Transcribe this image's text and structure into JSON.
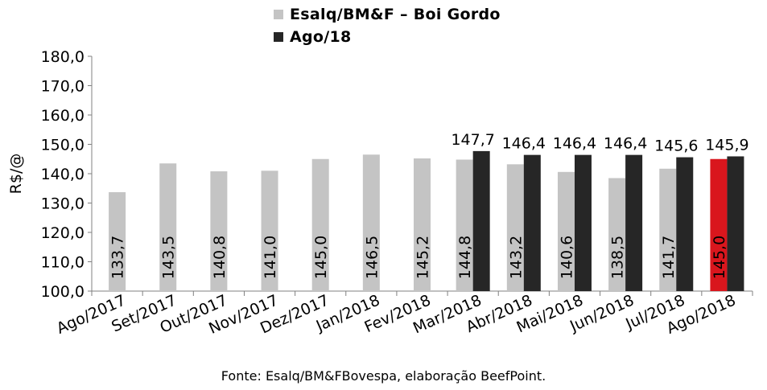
{
  "chart_data": {
    "type": "bar",
    "ylabel": "R$/@",
    "ylim": [
      100,
      180
    ],
    "yticks": [
      "100,0",
      "110,0",
      "120,0",
      "130,0",
      "140,0",
      "150,0",
      "160,0",
      "170,0",
      "180,0"
    ],
    "categories": [
      "Ago/2017",
      "Set/2017",
      "Out/2017",
      "Nov/2017",
      "Dez/2017",
      "Jan/2018",
      "Fev/2018",
      "Mar/2018",
      "Abr/2018",
      "Mai/2018",
      "Jun/2018",
      "Jul/2018",
      "Ago/2018"
    ],
    "series": [
      {
        "name": "Esalq/BM&F – Boi Gordo",
        "color": "#c4c4c4",
        "values": [
          133.7,
          143.5,
          140.8,
          141.0,
          145.0,
          146.5,
          145.2,
          144.8,
          143.2,
          140.6,
          138.5,
          141.7,
          145.0
        ],
        "labels": [
          "133,7",
          "143,5",
          "140,8",
          "141,0",
          "145,0",
          "146,5",
          "145,2",
          "144,8",
          "143,2",
          "140,6",
          "138,5",
          "141,7",
          "145,0"
        ],
        "highlight": {
          "index": 12,
          "color": "#d9161d"
        }
      },
      {
        "name": "Ago/18",
        "color": "#262626",
        "values": [
          null,
          null,
          null,
          null,
          null,
          null,
          null,
          147.7,
          146.4,
          146.4,
          146.4,
          145.6,
          145.9
        ],
        "labels": [
          null,
          null,
          null,
          null,
          null,
          null,
          null,
          "147,7",
          "146,4",
          "146,4",
          "146,4",
          "145,6",
          "145,9"
        ]
      }
    ],
    "grid": false,
    "legend_position": "top"
  },
  "legend": {
    "items": [
      {
        "label": "Esalq/BM&F – Boi Gordo",
        "color": "#c4c4c4"
      },
      {
        "label": "Ago/18",
        "color": "#262626"
      }
    ]
  },
  "footer": {
    "source": "Fonte: Esalq/BM&FBovespa, elaboração BeefPoint."
  }
}
